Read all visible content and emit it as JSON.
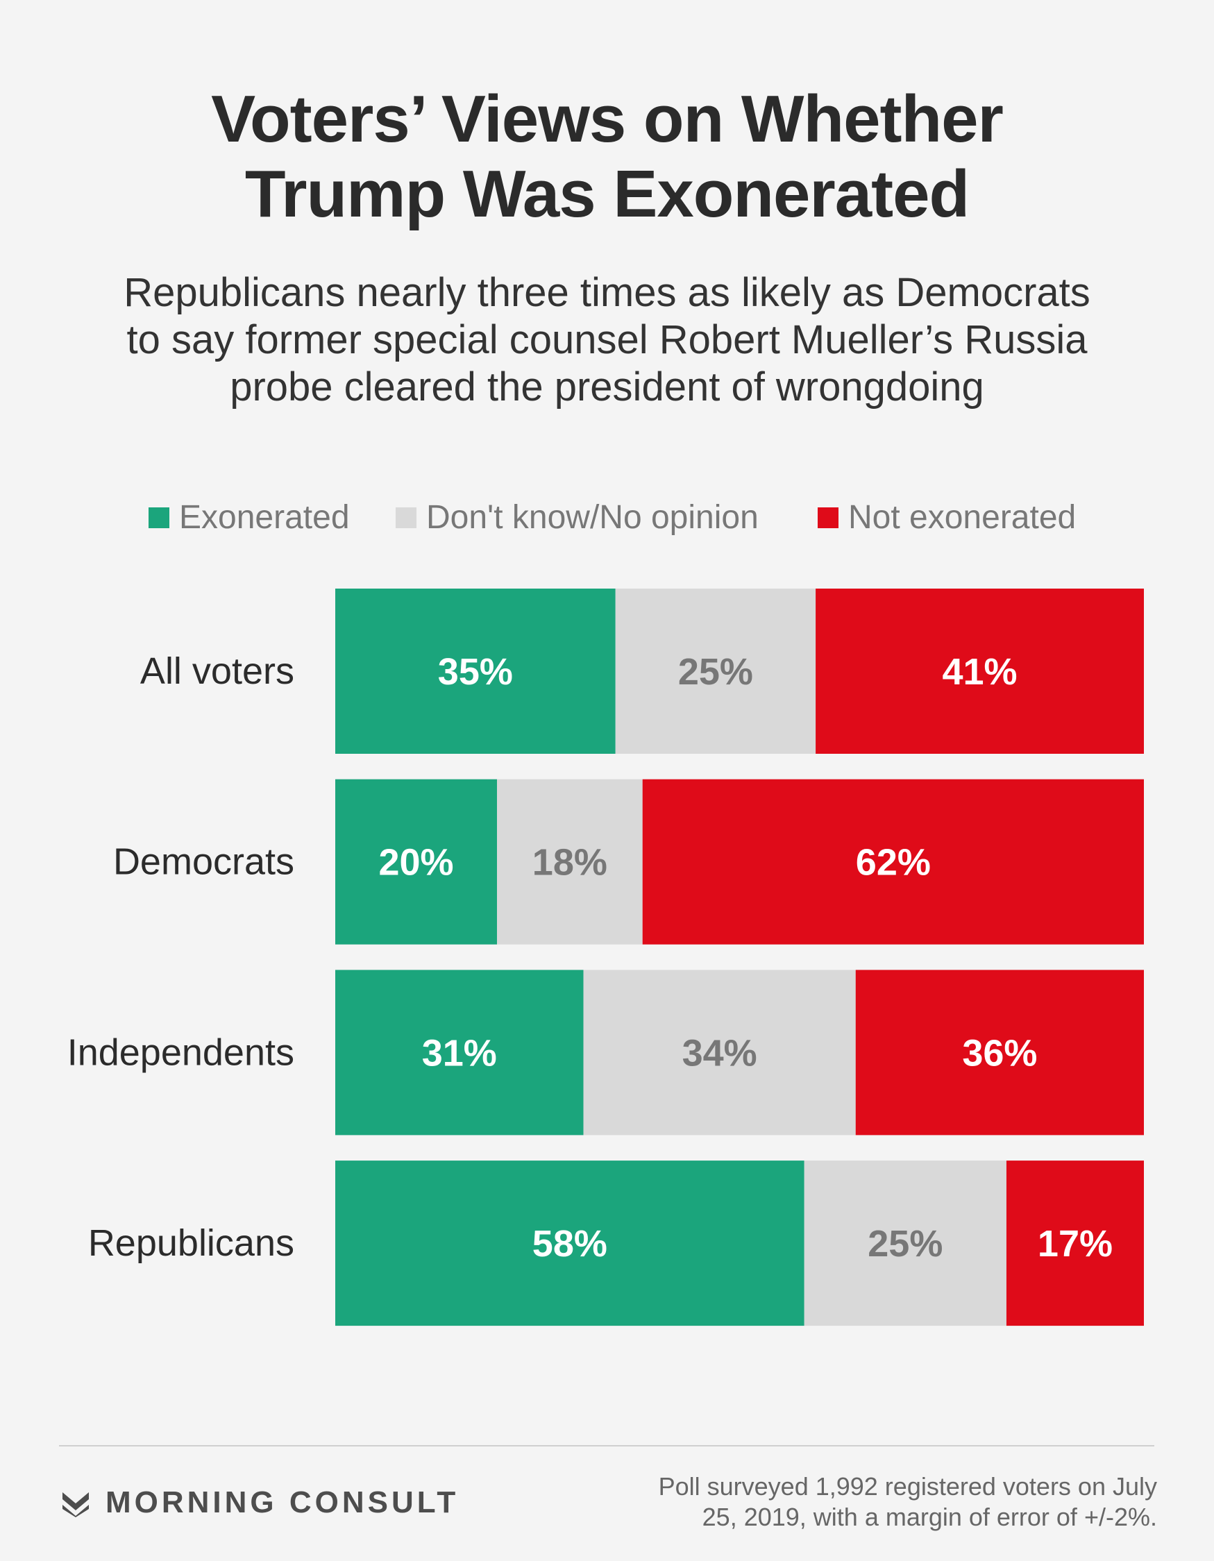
{
  "colors": {
    "exonerated": "#1ba57c",
    "dont_know": "#d9d9d9",
    "not_exonerated": "#df0b19",
    "label_light": "#ffffff",
    "label_dark": "#777777"
  },
  "title": "Voters’ Views on Whether\nTrump Was Exonerated",
  "subtitle": "Republicans nearly three times as likely as Democrats\nto say former special counsel Robert Mueller’s Russia\nprobe cleared the president of wrongdoing",
  "legend": [
    {
      "label": "Exonerated",
      "color": "#1ba57c"
    },
    {
      "label": "Don't know/No opinion",
      "color": "#d9d9d9"
    },
    {
      "label": "Not exonerated",
      "color": "#df0b19"
    }
  ],
  "chart_data": {
    "type": "bar",
    "orientation": "horizontal",
    "stacked": true,
    "categories": [
      "All voters",
      "Democrats",
      "Independents",
      "Republicans"
    ],
    "series": [
      {
        "name": "Exonerated",
        "color": "#1ba57c",
        "values": [
          35,
          20,
          31,
          58
        ],
        "labels": [
          "35%",
          "20%",
          "31%",
          "58%"
        ]
      },
      {
        "name": "Don't know/No opinion",
        "color": "#d9d9d9",
        "values": [
          25,
          18,
          34,
          25
        ],
        "labels": [
          "25%",
          "18%",
          "34%",
          "25%"
        ]
      },
      {
        "name": "Not exonerated",
        "color": "#df0b19",
        "values": [
          41,
          62,
          36,
          17
        ],
        "labels": [
          "41%",
          "62%",
          "36%",
          "17%"
        ]
      }
    ],
    "legend_position": "top",
    "grid": false
  },
  "footer": {
    "brand": "MORNING CONSULT",
    "note": "Poll surveyed 1,992 registered voters on July\n25, 2019, with a margin of error of +/-2%."
  }
}
